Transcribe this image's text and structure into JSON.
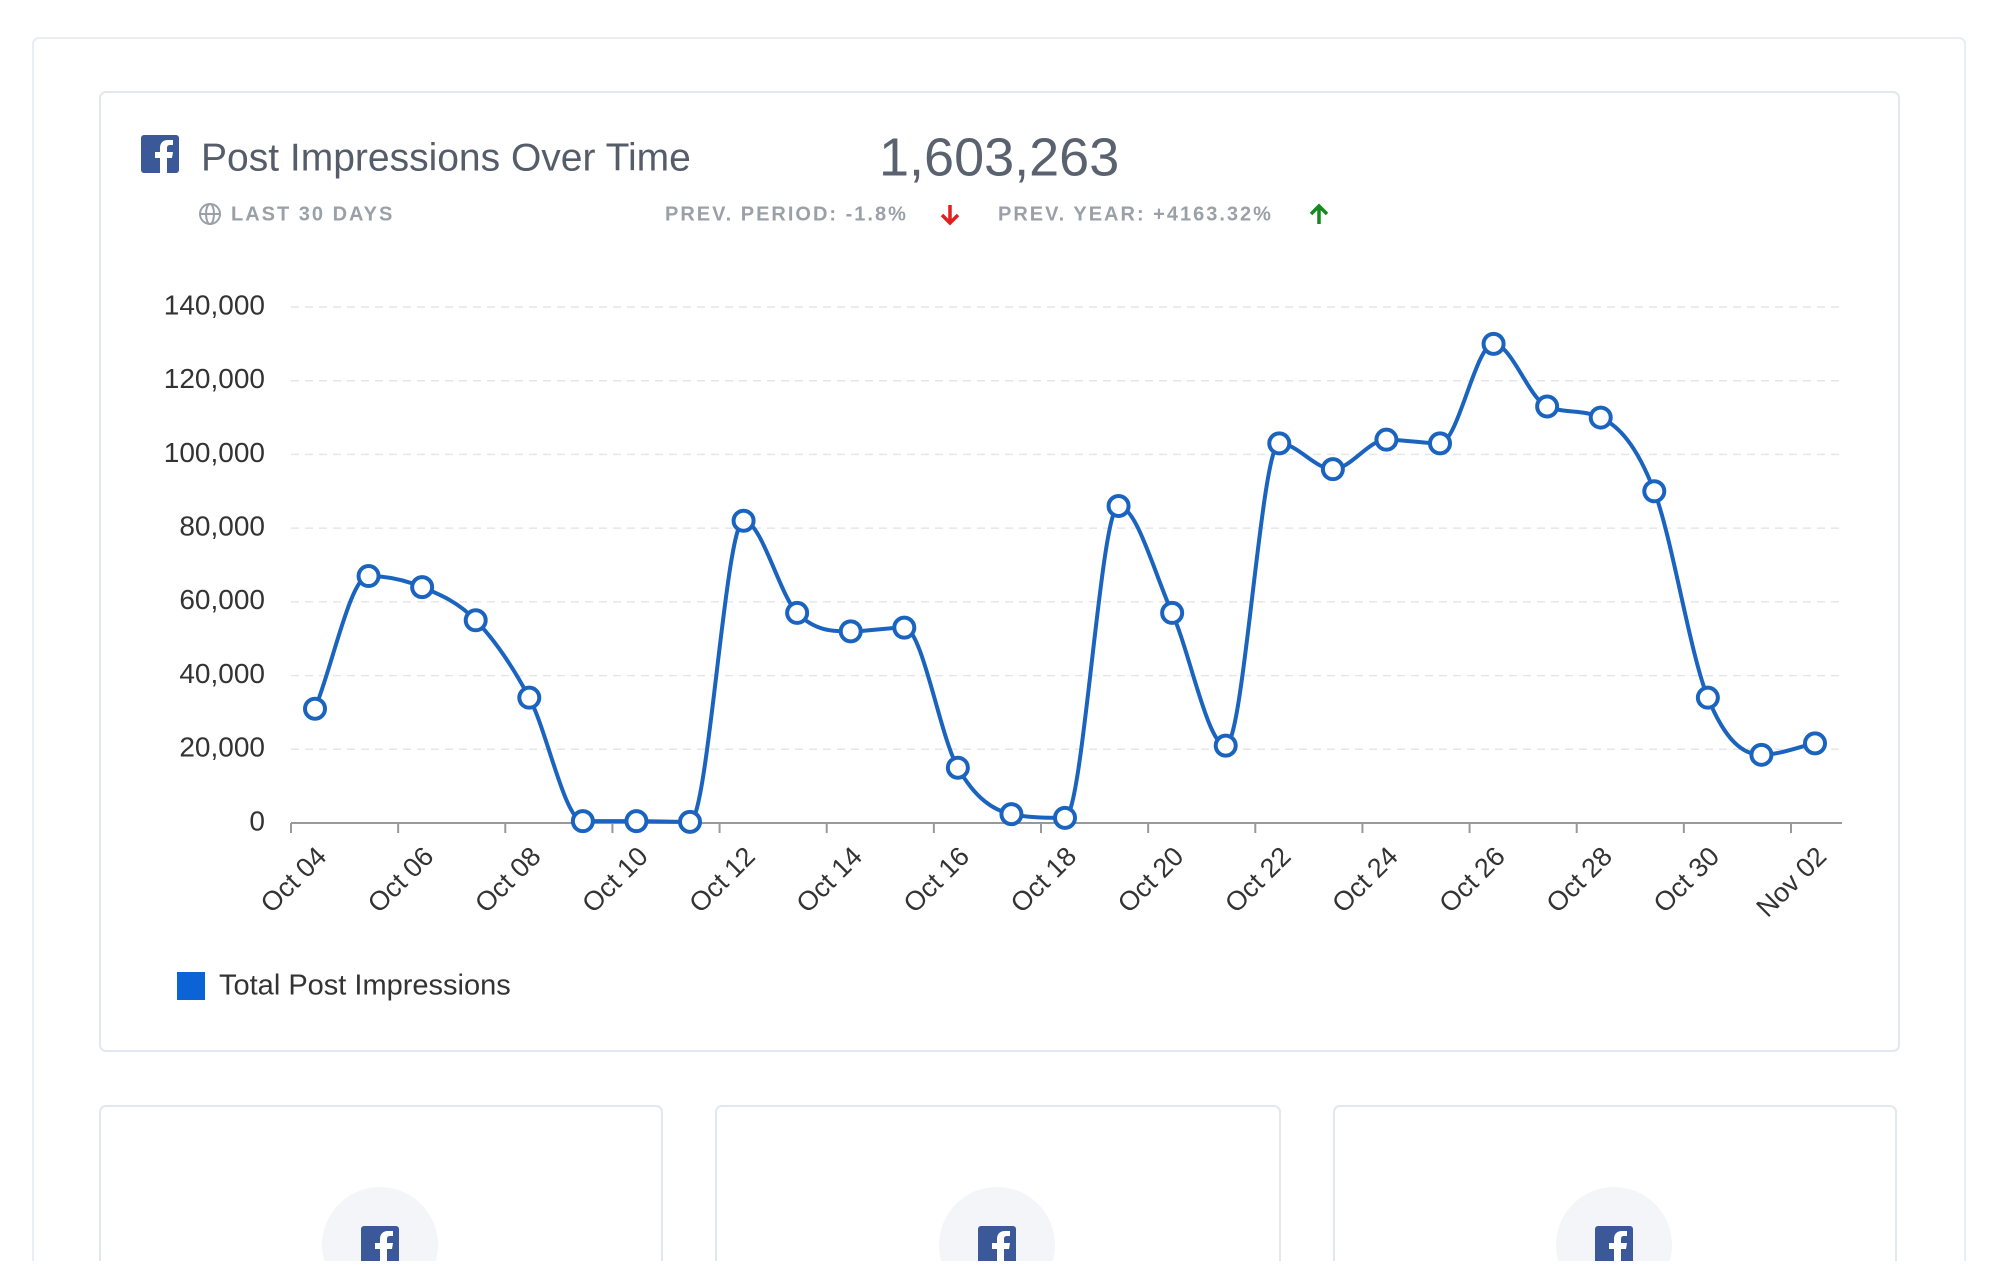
{
  "header": {
    "title": "Post Impressions Over Time",
    "total": "1,603,263",
    "period": "LAST 30 DAYS",
    "prev_period": "PREV. PERIOD: -1.8%",
    "prev_year": "PREV. YEAR: +4163.32%"
  },
  "chart_data": {
    "type": "line",
    "categories": [
      "Oct 04",
      null,
      "Oct 06",
      null,
      "Oct 08",
      null,
      "Oct 10",
      null,
      "Oct 12",
      null,
      "Oct 14",
      null,
      "Oct 16",
      null,
      "Oct 18",
      null,
      "Oct 20",
      null,
      "Oct 22",
      null,
      "Oct 24",
      null,
      "Oct 26",
      null,
      "Oct 28",
      null,
      "Oct 30",
      null,
      "Nov 02"
    ],
    "series": [
      {
        "name": "Total Post Impressions",
        "color": "#1a64c0",
        "values": [
          31000,
          67000,
          64000,
          55000,
          34000,
          500,
          500,
          300,
          82000,
          57000,
          52000,
          53000,
          15000,
          2400,
          1400,
          86000,
          57000,
          21000,
          103000,
          96000,
          104000,
          103000,
          130000,
          113000,
          110000,
          90000,
          34000,
          18500,
          21600
        ]
      }
    ],
    "legend_color": "#0b63d6",
    "ylim": [
      0,
      140000
    ],
    "yticks": [
      0,
      {
        "value": 20000,
        "label": "20,000"
      },
      {
        "value": 40000,
        "label": "40,000"
      },
      {
        "value": 60000,
        "label": "60,000"
      },
      {
        "value": 80000,
        "label": "80,000"
      },
      {
        "value": 100000,
        "label": "100,000"
      },
      {
        "value": 120000,
        "label": "120,000"
      },
      {
        "value": 140000,
        "label": "140,000"
      }
    ],
    "grid": true
  }
}
